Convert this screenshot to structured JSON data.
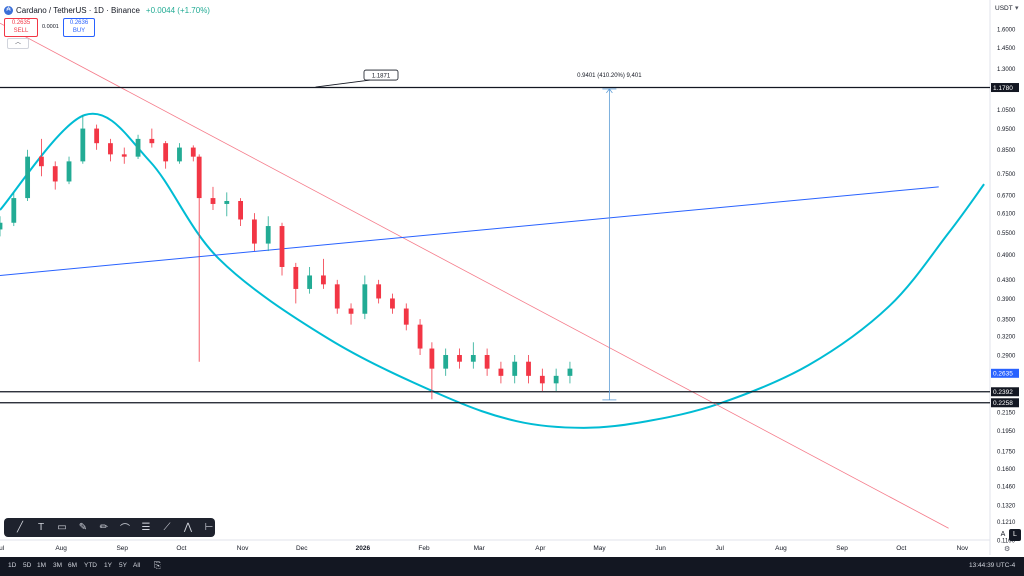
{
  "header": {
    "coin_icon": "₳",
    "symbol_title": "Cardano / TetherUS · 1D · Binance",
    "change": "+0.0044 (+1.70%)"
  },
  "trade": {
    "sell_price": "0.2635",
    "sell_label": "SELL",
    "spread": "0.0001",
    "buy_price": "0.2636",
    "buy_label": "BUY",
    "collapse_icon": "chevron-up-icon"
  },
  "price_axis": {
    "unit": "USDT",
    "unit_caret": "▾"
  },
  "icons": {
    "collapse": "︿",
    "toolbar": [
      {
        "name": "trendline-icon",
        "glyph": "╱"
      },
      {
        "name": "text-icon",
        "glyph": "T"
      },
      {
        "name": "callout-icon",
        "glyph": "▭"
      },
      {
        "name": "brush-icon",
        "glyph": "✎"
      },
      {
        "name": "highlighter-icon",
        "glyph": "✏"
      },
      {
        "name": "path-icon",
        "glyph": "⌒"
      },
      {
        "name": "fib-icon",
        "glyph": "☰"
      },
      {
        "name": "ray-icon",
        "glyph": "⟋"
      },
      {
        "name": "polyline-icon",
        "glyph": "⋀"
      },
      {
        "name": "horizontal-line-icon",
        "glyph": "⊢"
      }
    ],
    "date_range": "⎘",
    "settings": "⚙"
  },
  "bottom_bar": {
    "timeframes": [
      "1D",
      "5D",
      "1M",
      "3M",
      "6M",
      "YTD",
      "1Y",
      "5Y",
      "All"
    ],
    "clock": "13:44:39 UTC-4",
    "auto_label": "A",
    "log_label": "L"
  },
  "colors": {
    "up": "#22ab94",
    "down": "#f23645",
    "downtrend": "#f57b8a",
    "rising_line": "#2962ff",
    "arc": "#00bcd4",
    "measure": "#5b9bd5",
    "level": "#131722"
  },
  "chart_data": {
    "type": "candlestick",
    "series_name": "Cardano / TetherUS",
    "y_scale": "log",
    "ylim": [
      0.11,
      1.75
    ],
    "xlim": [
      "2025-07-01",
      "2026-11-15"
    ],
    "y_ticks": [
      "1.6000",
      "1.4500",
      "1.3000",
      "1.1780",
      "1.0500",
      "0.9500",
      "0.8500",
      "0.7500",
      "0.6700",
      "0.6100",
      "0.5500",
      "0.4900",
      "0.4300",
      "0.3900",
      "0.3500",
      "0.3200",
      "0.2900",
      "0.2635",
      "0.2392",
      "0.2258",
      "0.2150",
      "0.1950",
      "0.1750",
      "0.1600",
      "0.1460",
      "0.1320",
      "0.1210",
      "0.1100"
    ],
    "x_ticks": [
      "Jul",
      "Aug",
      "Sep",
      "Oct",
      "Nov",
      "Dec",
      "2026",
      "Feb",
      "Mar",
      "Apr",
      "May",
      "Jun",
      "Jul",
      "Aug",
      "Sep",
      "Oct",
      "Nov"
    ],
    "ohlc_approx": [
      [
        "2025-07-01",
        0.56,
        0.6,
        0.54,
        0.58
      ],
      [
        "2025-07-08",
        0.58,
        0.68,
        0.57,
        0.66
      ],
      [
        "2025-07-15",
        0.66,
        0.85,
        0.65,
        0.82
      ],
      [
        "2025-07-22",
        0.82,
        0.9,
        0.74,
        0.78
      ],
      [
        "2025-07-29",
        0.78,
        0.8,
        0.69,
        0.72
      ],
      [
        "2025-08-05",
        0.72,
        0.82,
        0.71,
        0.8
      ],
      [
        "2025-08-12",
        0.8,
        1.02,
        0.79,
        0.95
      ],
      [
        "2025-08-19",
        0.95,
        0.97,
        0.85,
        0.88
      ],
      [
        "2025-08-26",
        0.88,
        0.9,
        0.8,
        0.83
      ],
      [
        "2025-09-02",
        0.83,
        0.86,
        0.79,
        0.82
      ],
      [
        "2025-09-09",
        0.82,
        0.92,
        0.81,
        0.9
      ],
      [
        "2025-09-16",
        0.9,
        0.95,
        0.86,
        0.88
      ],
      [
        "2025-09-23",
        0.88,
        0.89,
        0.77,
        0.8
      ],
      [
        "2025-09-30",
        0.8,
        0.88,
        0.79,
        0.86
      ],
      [
        "2025-10-07",
        0.86,
        0.87,
        0.8,
        0.82
      ],
      [
        "2025-10-10",
        0.82,
        0.83,
        0.28,
        0.66
      ],
      [
        "2025-10-17",
        0.66,
        0.7,
        0.62,
        0.64
      ],
      [
        "2025-10-24",
        0.64,
        0.68,
        0.6,
        0.65
      ],
      [
        "2025-10-31",
        0.65,
        0.66,
        0.57,
        0.59
      ],
      [
        "2025-11-07",
        0.59,
        0.61,
        0.5,
        0.52
      ],
      [
        "2025-11-14",
        0.52,
        0.6,
        0.5,
        0.57
      ],
      [
        "2025-11-21",
        0.57,
        0.58,
        0.44,
        0.46
      ],
      [
        "2025-11-28",
        0.46,
        0.47,
        0.38,
        0.41
      ],
      [
        "2025-12-05",
        0.41,
        0.46,
        0.4,
        0.44
      ],
      [
        "2025-12-12",
        0.44,
        0.48,
        0.41,
        0.42
      ],
      [
        "2025-12-19",
        0.42,
        0.43,
        0.36,
        0.37
      ],
      [
        "2025-12-26",
        0.37,
        0.38,
        0.34,
        0.36
      ],
      [
        "2026-01-02",
        0.36,
        0.44,
        0.35,
        0.42
      ],
      [
        "2026-01-09",
        0.42,
        0.43,
        0.38,
        0.39
      ],
      [
        "2026-01-16",
        0.39,
        0.4,
        0.36,
        0.37
      ],
      [
        "2026-01-23",
        0.37,
        0.38,
        0.33,
        0.34
      ],
      [
        "2026-01-30",
        0.34,
        0.35,
        0.29,
        0.3
      ],
      [
        "2026-02-05",
        0.3,
        0.31,
        0.23,
        0.27
      ],
      [
        "2026-02-12",
        0.27,
        0.3,
        0.26,
        0.29
      ],
      [
        "2026-02-19",
        0.29,
        0.3,
        0.27,
        0.28
      ],
      [
        "2026-02-26",
        0.28,
        0.31,
        0.27,
        0.29
      ],
      [
        "2026-03-05",
        0.29,
        0.3,
        0.26,
        0.27
      ],
      [
        "2026-03-12",
        0.27,
        0.28,
        0.25,
        0.26
      ],
      [
        "2026-03-19",
        0.26,
        0.29,
        0.25,
        0.28
      ],
      [
        "2026-03-26",
        0.28,
        0.29,
        0.25,
        0.26
      ],
      [
        "2026-04-02",
        0.26,
        0.27,
        0.24,
        0.25
      ],
      [
        "2026-04-09",
        0.25,
        0.27,
        0.24,
        0.26
      ],
      [
        "2026-04-16",
        0.26,
        0.28,
        0.25,
        0.27
      ]
    ],
    "levels": [
      {
        "label": "1.1780",
        "value": 1.178
      },
      {
        "label": "0.2392",
        "value": 0.2392
      },
      {
        "label": "0.2258",
        "value": 0.2258
      }
    ],
    "current_price": {
      "label": "0.2635",
      "value": 0.2635
    },
    "projection_label": "1.1871",
    "projection_value": 1.1871,
    "measure": {
      "label": "0.9401 (410.20%) 9,401",
      "date": "2026-05-06",
      "from": 0.2292,
      "to": 1.1693
    },
    "downtrend_line": {
      "points": [
        [
          "2025-07-01",
          1.65
        ],
        [
          "2026-10-25",
          0.117
        ]
      ]
    },
    "rising_line": {
      "points": [
        [
          "2025-07-01",
          0.44
        ],
        [
          "2026-10-20",
          0.7
        ]
      ]
    },
    "rounding_arc": {
      "points": [
        [
          "2025-07-01",
          0.62
        ],
        [
          "2025-08-13",
          1.02
        ],
        [
          "2025-09-15",
          0.8
        ],
        [
          "2025-10-20",
          0.48
        ],
        [
          "2025-12-15",
          0.315
        ],
        [
          "2026-02-10",
          0.235
        ],
        [
          "2026-03-20",
          0.205
        ],
        [
          "2026-04-23",
          0.198
        ],
        [
          "2026-05-25",
          0.205
        ],
        [
          "2026-07-01",
          0.225
        ],
        [
          "2026-08-15",
          0.275
        ],
        [
          "2026-09-25",
          0.375
        ],
        [
          "2026-10-25",
          0.55
        ],
        [
          "2026-11-12",
          0.71
        ]
      ]
    },
    "grid": false,
    "legend": "none"
  }
}
